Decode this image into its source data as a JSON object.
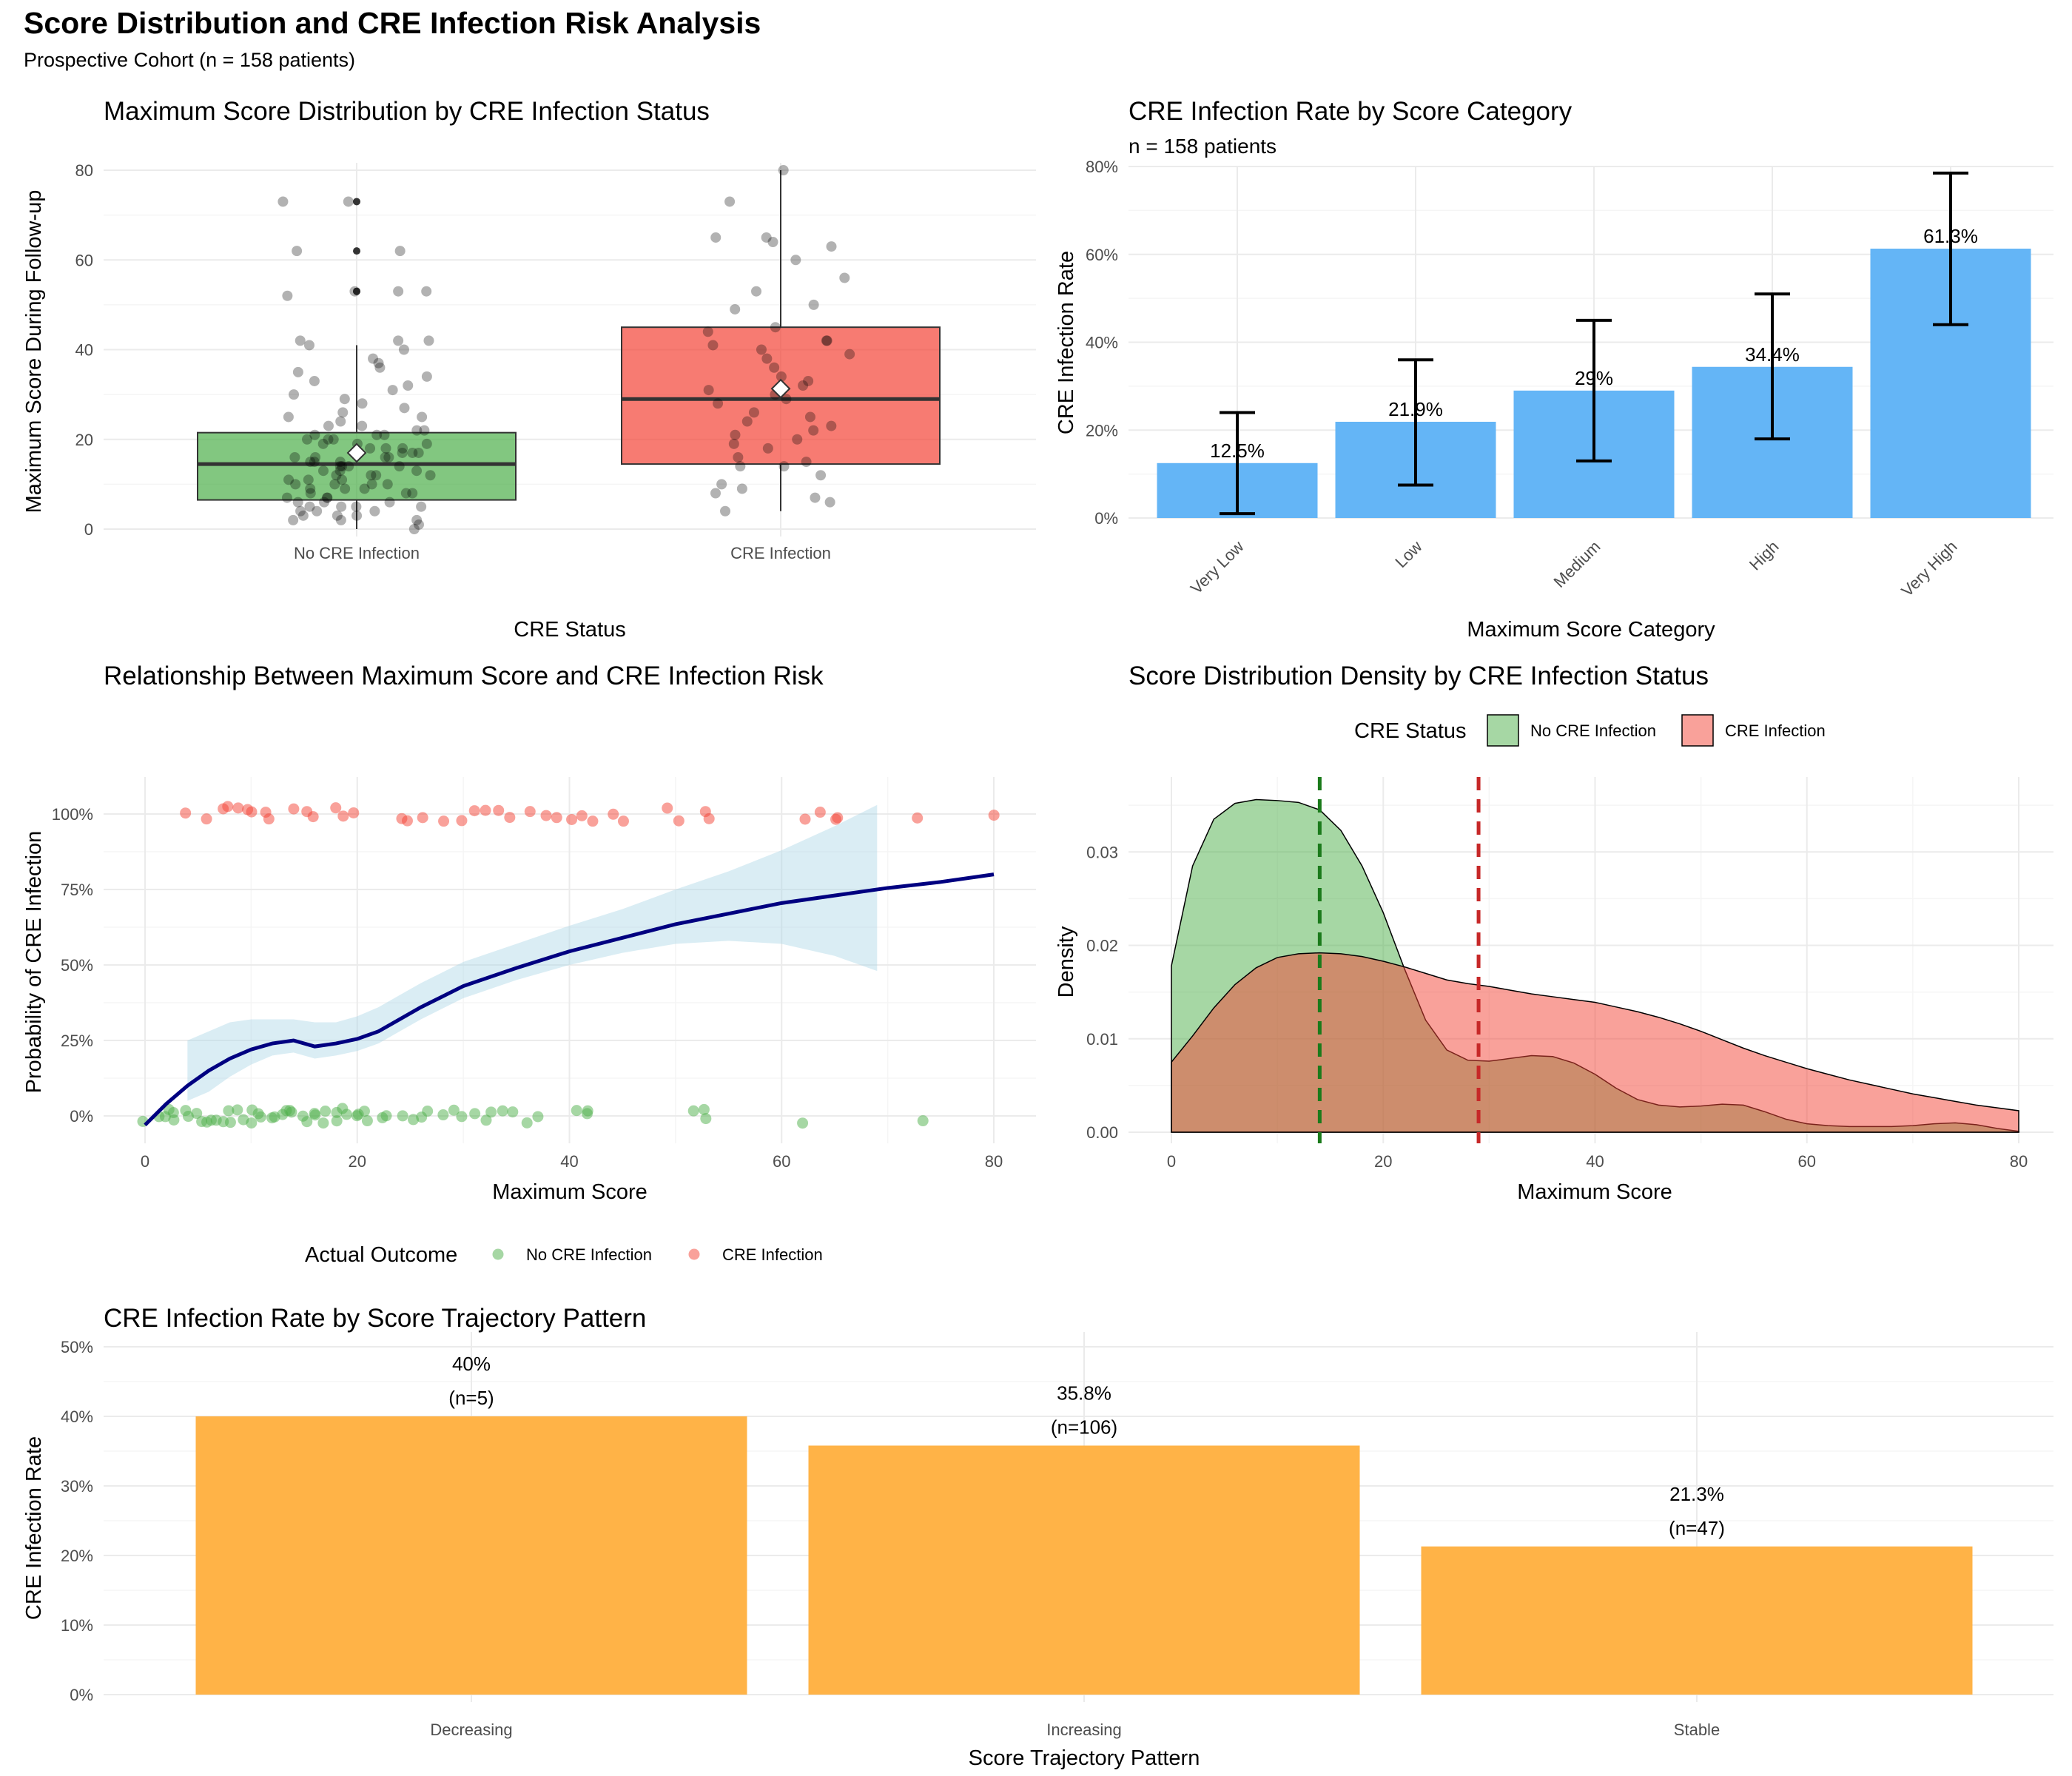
{
  "title": "Score Distribution and CRE Infection Risk Analysis",
  "subtitle": "Prospective Cohort (n = 158 patients)",
  "colors": {
    "green": "#4daf4a",
    "red": "#f44336",
    "blue": "#64b5f6",
    "orange": "#ffb347",
    "navy": "#000080",
    "ribbon": "#add8e6",
    "dark_green": "#1b7a1b",
    "dark_red": "#c62828"
  },
  "chart_data": [
    {
      "id": "box",
      "type": "box",
      "title": "Maximum Score Distribution by CRE Infection Status",
      "xlabel": "CRE Status",
      "ylabel": "Maximum Score During Follow-up",
      "categories": [
        "No CRE Infection",
        "CRE Infection"
      ],
      "ylim": [
        0,
        80
      ],
      "yticks": [
        0,
        20,
        40,
        60,
        80
      ],
      "boxes": [
        {
          "name": "No CRE Infection",
          "min": 0,
          "q1": 6.5,
          "median": 14.5,
          "q3": 21.5,
          "max": 41,
          "mean": 17,
          "outliers": [
            53,
            53,
            62,
            73
          ]
        },
        {
          "name": "CRE Infection",
          "min": 4,
          "q1": 14.5,
          "median": 29,
          "q3": 45,
          "max": 80,
          "mean": 31.3,
          "outliers": []
        }
      ],
      "points": {
        "No CRE Infection": [
          0,
          1,
          2,
          2,
          2,
          3,
          3,
          3,
          4,
          4,
          4,
          5,
          5,
          5,
          5,
          6,
          6,
          6,
          7,
          7,
          7,
          8,
          8,
          8,
          9,
          9,
          9,
          10,
          10,
          10,
          10,
          11,
          11,
          11,
          12,
          12,
          12,
          12,
          13,
          13,
          13,
          14,
          14,
          14,
          14,
          15,
          15,
          15,
          16,
          16,
          16,
          16,
          17,
          17,
          17,
          18,
          18,
          18,
          19,
          19,
          19,
          20,
          20,
          20,
          21,
          21,
          21,
          22,
          22,
          23,
          23,
          24,
          25,
          25,
          26,
          27,
          28,
          29,
          30,
          31,
          32,
          33,
          34,
          35,
          36,
          37,
          38,
          40,
          41,
          42,
          42,
          42,
          52,
          53,
          53,
          53,
          62,
          62,
          73,
          73
        ],
        "CRE Infection": [
          4,
          6,
          7,
          8,
          9,
          10,
          12,
          14,
          14,
          15,
          16,
          18,
          19,
          20,
          21,
          22,
          23,
          24,
          25,
          26,
          28,
          29,
          30,
          31,
          32,
          33,
          34,
          36,
          38,
          39,
          40,
          41,
          42,
          42,
          44,
          45,
          49,
          50,
          53,
          56,
          60,
          63,
          64,
          65,
          65,
          73,
          80
        ]
      }
    },
    {
      "id": "rate_category",
      "type": "bar",
      "title": "CRE Infection Rate by Score Category",
      "subtitle": "n = 158 patients",
      "xlabel": "Maximum Score Category",
      "ylabel": "CRE Infection Rate",
      "categories": [
        "Very Low",
        "Low",
        "Medium",
        "High",
        "Very High"
      ],
      "values": [
        12.5,
        21.9,
        29,
        34.4,
        61.3
      ],
      "labels": [
        "12.5%",
        "21.9%",
        "29%",
        "34.4%",
        "61.3%"
      ],
      "err_low": [
        1,
        7.5,
        13,
        18,
        44
      ],
      "err_high": [
        24,
        36,
        45,
        51,
        78.5
      ],
      "ylim": [
        0,
        80
      ],
      "yticks": [
        "0%",
        "20%",
        "40%",
        "60%",
        "80%"
      ]
    },
    {
      "id": "risk_curve",
      "type": "line",
      "title": "Relationship Between Maximum Score and CRE Infection Risk",
      "xlabel": "Maximum Score",
      "ylabel": "Probability of CRE Infection",
      "xlim": [
        0,
        80
      ],
      "ylim": [
        0,
        100
      ],
      "xticks": [
        "0",
        "20",
        "40",
        "60",
        "80"
      ],
      "yticks": [
        "0%",
        "25%",
        "50%",
        "75%",
        "100%"
      ],
      "smooth_x": [
        0,
        2,
        4,
        6,
        8,
        10,
        12,
        14,
        16,
        18,
        20,
        22,
        24,
        26,
        28,
        30,
        35,
        40,
        45,
        50,
        55,
        60,
        65,
        70,
        75,
        80
      ],
      "smooth_y": [
        -3,
        4,
        10,
        15,
        19,
        22,
        24,
        25,
        23,
        24,
        25.5,
        28,
        32,
        36,
        39.5,
        43,
        49,
        54.5,
        59,
        63.5,
        67,
        70.5,
        73,
        75.5,
        77.5,
        80
      ],
      "ribbon_x": [
        4,
        6,
        8,
        10,
        12,
        14,
        16,
        18,
        20,
        22,
        24,
        26,
        28,
        30,
        35,
        40,
        45,
        50,
        55,
        60,
        65,
        69
      ],
      "ribbon_low": [
        5,
        8,
        13,
        17,
        20,
        21,
        19,
        20,
        21.5,
        24,
        28,
        32,
        35.5,
        39,
        45,
        50,
        54,
        57,
        58,
        57,
        53,
        48
      ],
      "ribbon_high": [
        25,
        28,
        31,
        32,
        32,
        32,
        31,
        31,
        33,
        36,
        40,
        44,
        47.5,
        51,
        57,
        63,
        68.5,
        75,
        81,
        88,
        96,
        103
      ],
      "legend_title": "Actual Outcome",
      "legend": [
        "No CRE Infection",
        "CRE Infection"
      ],
      "points_no": [
        0,
        1,
        2,
        2,
        3,
        3,
        4,
        4,
        5,
        5,
        6,
        6,
        7,
        7,
        8,
        8,
        9,
        9,
        10,
        10,
        11,
        11,
        12,
        12,
        13,
        13,
        14,
        14,
        15,
        15,
        16,
        16,
        17,
        17,
        18,
        18,
        19,
        19,
        20,
        20,
        21,
        21,
        22,
        23,
        24,
        25,
        26,
        27,
        28,
        29,
        30,
        31,
        32,
        33,
        34,
        35,
        36,
        37,
        41,
        42,
        42,
        52,
        53,
        53,
        62,
        73
      ],
      "points_cre": [
        4,
        6,
        7,
        8,
        9,
        10,
        10,
        11,
        12,
        14,
        15,
        16,
        18,
        19,
        20,
        24,
        25,
        26,
        28,
        30,
        31,
        32,
        33,
        34,
        36,
        38,
        39,
        40,
        41,
        42,
        44,
        45,
        49,
        50,
        53,
        53,
        62,
        64,
        65,
        65,
        73,
        80
      ]
    },
    {
      "id": "density",
      "type": "area",
      "title": "Score Distribution Density by CRE Infection Status",
      "xlabel": "Maximum Score",
      "ylabel": "Density",
      "xlim": [
        0,
        80
      ],
      "ylim": [
        0,
        0.037
      ],
      "xticks": [
        "0",
        "20",
        "40",
        "60",
        "80"
      ],
      "yticks": [
        "0.00",
        "0.01",
        "0.02",
        "0.03"
      ],
      "legend_title": "CRE Status",
      "legend": [
        "No CRE Infection",
        "CRE Infection"
      ],
      "x": [
        0,
        2,
        4,
        6,
        8,
        10,
        12,
        14,
        16,
        18,
        20,
        22,
        24,
        26,
        28,
        30,
        32,
        34,
        36,
        38,
        40,
        42,
        44,
        46,
        48,
        50,
        52,
        54,
        56,
        58,
        60,
        62,
        64,
        66,
        68,
        70,
        72,
        74,
        76,
        78,
        80
      ],
      "no_cre": [
        0.0178,
        0.0285,
        0.0335,
        0.0352,
        0.0356,
        0.0355,
        0.0353,
        0.0345,
        0.0323,
        0.0285,
        0.0235,
        0.0175,
        0.012,
        0.0088,
        0.0077,
        0.0076,
        0.0079,
        0.0082,
        0.0081,
        0.0074,
        0.0062,
        0.0047,
        0.0035,
        0.0029,
        0.0027,
        0.0028,
        0.003,
        0.0029,
        0.0022,
        0.0014,
        0.0009,
        0.0007,
        0.0006,
        0.0006,
        0.0006,
        0.0007,
        0.0009,
        0.001,
        0.0008,
        0.0004,
        0.0001
      ],
      "cre": [
        0.0075,
        0.0103,
        0.0133,
        0.0158,
        0.0176,
        0.0187,
        0.0191,
        0.0192,
        0.0191,
        0.0188,
        0.0183,
        0.0177,
        0.017,
        0.0163,
        0.0159,
        0.0156,
        0.0152,
        0.0148,
        0.0145,
        0.0142,
        0.0139,
        0.0134,
        0.0129,
        0.0123,
        0.0116,
        0.0108,
        0.0099,
        0.009,
        0.0082,
        0.0075,
        0.0068,
        0.0062,
        0.0056,
        0.0051,
        0.0046,
        0.0041,
        0.0037,
        0.0033,
        0.0029,
        0.0026,
        0.0023
      ],
      "vlines": [
        14,
        29
      ]
    },
    {
      "id": "trajectory",
      "type": "bar",
      "title": "CRE Infection Rate by Score Trajectory Pattern",
      "xlabel": "Score Trajectory Pattern",
      "ylabel": "CRE Infection Rate",
      "categories": [
        "Decreasing",
        "Increasing",
        "Stable"
      ],
      "values": [
        40,
        35.8,
        21.3
      ],
      "labels": [
        "40%",
        "35.8%",
        "21.3%"
      ],
      "n_labels": [
        "(n=5)",
        "(n=106)",
        "(n=47)"
      ],
      "ylim": [
        0,
        50
      ],
      "yticks": [
        "0%",
        "10%",
        "20%",
        "30%",
        "40%",
        "50%"
      ]
    }
  ]
}
